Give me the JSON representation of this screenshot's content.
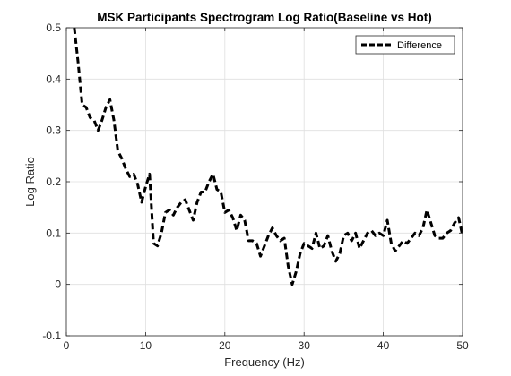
{
  "chart_data": {
    "type": "line",
    "title": "MSK Participants Spectrogram Log Ratio(Baseline vs Hot)",
    "xlabel": "Frequency (Hz)",
    "ylabel": "Log Ratio",
    "xlim": [
      0,
      50
    ],
    "ylim": [
      -0.1,
      0.5
    ],
    "x_ticks": [
      "0",
      "10",
      "20",
      "30",
      "40",
      "50"
    ],
    "y_ticks": [
      "-0.1",
      "0",
      "0.1",
      "0.2",
      "0.3",
      "0.4",
      "0.5"
    ],
    "grid": true,
    "legend_position": "top-right",
    "series": [
      {
        "name": "Difference",
        "color": "#000000",
        "line_style": "dashed",
        "x": [
          1.0,
          1.5,
          2.0,
          2.5,
          3.0,
          3.5,
          4.0,
          4.5,
          5.0,
          5.5,
          6.0,
          6.5,
          7.0,
          7.5,
          8.0,
          8.5,
          9.0,
          9.5,
          10.0,
          10.5,
          11.0,
          11.5,
          12.0,
          12.5,
          13.0,
          13.5,
          14.0,
          14.5,
          15.0,
          15.5,
          16.0,
          16.5,
          17.0,
          17.5,
          18.0,
          18.5,
          19.0,
          19.5,
          20.0,
          20.5,
          21.0,
          21.5,
          22.0,
          22.5,
          23.0,
          23.5,
          24.0,
          24.5,
          25.0,
          25.5,
          26.0,
          26.5,
          27.0,
          27.5,
          28.0,
          28.5,
          29.0,
          29.5,
          30.0,
          30.5,
          31.0,
          31.5,
          32.0,
          32.5,
          33.0,
          33.5,
          34.0,
          34.5,
          35.0,
          35.5,
          36.0,
          36.5,
          37.0,
          37.5,
          38.0,
          38.5,
          39.0,
          39.5,
          40.0,
          40.5,
          41.0,
          41.5,
          42.0,
          42.5,
          43.0,
          43.5,
          44.0,
          44.5,
          45.0,
          45.5,
          46.0,
          46.5,
          47.0,
          47.5,
          48.0,
          48.5,
          49.0,
          49.5,
          50.0
        ],
        "values": [
          0.5,
          0.43,
          0.35,
          0.345,
          0.325,
          0.32,
          0.3,
          0.32,
          0.345,
          0.36,
          0.32,
          0.26,
          0.245,
          0.225,
          0.21,
          0.215,
          0.195,
          0.16,
          0.19,
          0.215,
          0.08,
          0.075,
          0.1,
          0.14,
          0.145,
          0.135,
          0.15,
          0.16,
          0.165,
          0.145,
          0.125,
          0.16,
          0.18,
          0.18,
          0.2,
          0.215,
          0.185,
          0.18,
          0.14,
          0.145,
          0.13,
          0.105,
          0.135,
          0.125,
          0.085,
          0.085,
          0.08,
          0.055,
          0.075,
          0.095,
          0.11,
          0.095,
          0.085,
          0.09,
          0.035,
          0.0,
          0.025,
          0.06,
          0.08,
          0.075,
          0.07,
          0.1,
          0.07,
          0.075,
          0.095,
          0.065,
          0.045,
          0.06,
          0.095,
          0.1,
          0.085,
          0.1,
          0.07,
          0.085,
          0.1,
          0.105,
          0.095,
          0.1,
          0.095,
          0.125,
          0.08,
          0.065,
          0.075,
          0.085,
          0.08,
          0.09,
          0.1,
          0.095,
          0.11,
          0.145,
          0.12,
          0.095,
          0.09,
          0.09,
          0.1,
          0.105,
          0.12,
          0.13,
          0.095
        ]
      }
    ]
  }
}
